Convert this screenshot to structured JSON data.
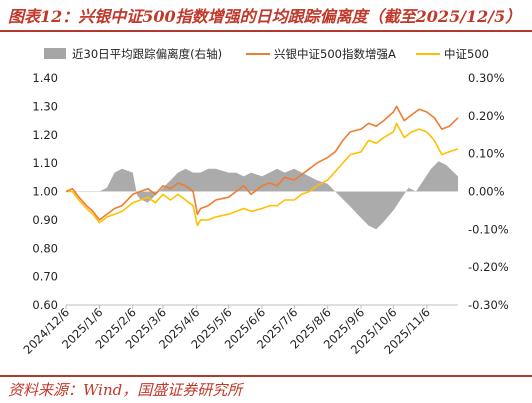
{
  "title": "图表12：兴银中证500指数增强的日均跟踪偏离度（截至2025/12/5）",
  "source": "资料来源：Wind，国盛证券研究所",
  "chart_data": {
    "type": "line",
    "legend": [
      {
        "name": "近30日平均跟踪偏离度(右轴)",
        "color": "#a6a6a6",
        "kind": "area"
      },
      {
        "name": "兴银中证500指数增强A",
        "color": "#ed7d31",
        "kind": "line"
      },
      {
        "name": "中证500",
        "color": "#ffc000",
        "kind": "line"
      }
    ],
    "left_axis": {
      "min": 0.6,
      "max": 1.4,
      "ticks": [
        "0.60",
        "0.70",
        "0.80",
        "0.90",
        "1.00",
        "1.10",
        "1.20",
        "1.30",
        "1.40"
      ]
    },
    "right_axis": {
      "min": -0.3,
      "max": 0.3,
      "ticks": [
        "-0.30%",
        "-0.20%",
        "-0.10%",
        "0.00%",
        "0.10%",
        "0.20%",
        "0.30%"
      ]
    },
    "x_ticks": [
      "2024/12/6",
      "2025/1/6",
      "2025/2/6",
      "2025/3/6",
      "2025/4/6",
      "2025/5/6",
      "2025/6/6",
      "2025/7/6",
      "2025/8/6",
      "2025/9/6",
      "2025/10/6",
      "2025/11/6"
    ],
    "x_range": [
      "2024/12/6",
      "2025/12/5"
    ],
    "series": [
      {
        "name": "兴银中证500指数增强A",
        "color": "#ed7d31",
        "points": [
          [
            "2024/12/6",
            1.0
          ],
          [
            "2024/12/12",
            1.01
          ],
          [
            "2024/12/18",
            0.98
          ],
          [
            "2024/12/25",
            0.95
          ],
          [
            "2024/12/31",
            0.93
          ],
          [
            "2025/1/6",
            0.9
          ],
          [
            "2025/1/13",
            0.92
          ],
          [
            "2025/1/20",
            0.94
          ],
          [
            "2025/1/27",
            0.95
          ],
          [
            "2025/2/6",
            0.99
          ],
          [
            "2025/2/13",
            1.0
          ],
          [
            "2025/2/20",
            1.01
          ],
          [
            "2025/2/27",
            0.99
          ],
          [
            "2025/3/6",
            1.02
          ],
          [
            "2025/3/13",
            1.01
          ],
          [
            "2025/3/20",
            1.03
          ],
          [
            "2025/3/27",
            1.02
          ],
          [
            "2025/4/3",
            1.0
          ],
          [
            "2025/4/7",
            0.92
          ],
          [
            "2025/4/10",
            0.94
          ],
          [
            "2025/4/17",
            0.95
          ],
          [
            "2025/4/24",
            0.97
          ],
          [
            "2025/5/6",
            0.98
          ],
          [
            "2025/5/13",
            1.0
          ],
          [
            "2025/5/20",
            1.02
          ],
          [
            "2025/5/27",
            0.99
          ],
          [
            "2025/6/6",
            1.02
          ],
          [
            "2025/6/13",
            1.03
          ],
          [
            "2025/6/20",
            1.02
          ],
          [
            "2025/6/27",
            1.05
          ],
          [
            "2025/7/6",
            1.04
          ],
          [
            "2025/7/13",
            1.06
          ],
          [
            "2025/7/20",
            1.08
          ],
          [
            "2025/7/27",
            1.1
          ],
          [
            "2025/8/6",
            1.12
          ],
          [
            "2025/8/13",
            1.14
          ],
          [
            "2025/8/20",
            1.18
          ],
          [
            "2025/8/27",
            1.21
          ],
          [
            "2025/9/6",
            1.22
          ],
          [
            "2025/9/13",
            1.24
          ],
          [
            "2025/9/20",
            1.23
          ],
          [
            "2025/9/27",
            1.25
          ],
          [
            "2025/10/6",
            1.28
          ],
          [
            "2025/10/9",
            1.3
          ],
          [
            "2025/10/16",
            1.25
          ],
          [
            "2025/10/23",
            1.27
          ],
          [
            "2025/10/30",
            1.29
          ],
          [
            "2025/11/6",
            1.28
          ],
          [
            "2025/11/13",
            1.26
          ],
          [
            "2025/11/20",
            1.22
          ],
          [
            "2025/11/27",
            1.23
          ],
          [
            "2025/12/5",
            1.26
          ]
        ]
      },
      {
        "name": "中证500",
        "color": "#ffc000",
        "points": [
          [
            "2024/12/6",
            1.0
          ],
          [
            "2024/12/12",
            1.0
          ],
          [
            "2024/12/18",
            0.97
          ],
          [
            "2024/12/25",
            0.94
          ],
          [
            "2024/12/31",
            0.92
          ],
          [
            "2025/1/6",
            0.89
          ],
          [
            "2025/1/13",
            0.91
          ],
          [
            "2025/1/20",
            0.92
          ],
          [
            "2025/1/27",
            0.93
          ],
          [
            "2025/2/6",
            0.96
          ],
          [
            "2025/2/13",
            0.97
          ],
          [
            "2025/2/20",
            0.98
          ],
          [
            "2025/2/27",
            0.96
          ],
          [
            "2025/3/6",
            0.99
          ],
          [
            "2025/3/13",
            0.97
          ],
          [
            "2025/3/20",
            0.99
          ],
          [
            "2025/3/27",
            0.97
          ],
          [
            "2025/4/3",
            0.95
          ],
          [
            "2025/4/7",
            0.88
          ],
          [
            "2025/4/10",
            0.9
          ],
          [
            "2025/4/17",
            0.9
          ],
          [
            "2025/4/24",
            0.91
          ],
          [
            "2025/5/6",
            0.92
          ],
          [
            "2025/5/13",
            0.93
          ],
          [
            "2025/5/20",
            0.94
          ],
          [
            "2025/5/27",
            0.93
          ],
          [
            "2025/6/6",
            0.94
          ],
          [
            "2025/6/13",
            0.95
          ],
          [
            "2025/6/20",
            0.95
          ],
          [
            "2025/6/27",
            0.97
          ],
          [
            "2025/7/6",
            0.97
          ],
          [
            "2025/7/13",
            0.99
          ],
          [
            "2025/7/20",
            1.0
          ],
          [
            "2025/7/27",
            1.02
          ],
          [
            "2025/8/6",
            1.04
          ],
          [
            "2025/8/13",
            1.07
          ],
          [
            "2025/8/20",
            1.1
          ],
          [
            "2025/8/27",
            1.13
          ],
          [
            "2025/9/6",
            1.14
          ],
          [
            "2025/9/13",
            1.18
          ],
          [
            "2025/9/20",
            1.17
          ],
          [
            "2025/9/27",
            1.19
          ],
          [
            "2025/10/6",
            1.21
          ],
          [
            "2025/10/9",
            1.24
          ],
          [
            "2025/10/16",
            1.19
          ],
          [
            "2025/10/23",
            1.21
          ],
          [
            "2025/10/30",
            1.22
          ],
          [
            "2025/11/6",
            1.21
          ],
          [
            "2025/11/13",
            1.18
          ],
          [
            "2025/11/20",
            1.13
          ],
          [
            "2025/11/27",
            1.14
          ],
          [
            "2025/12/5",
            1.15
          ]
        ]
      }
    ],
    "tracking_deviation": {
      "name": "近30日平均跟踪偏离度(右轴)",
      "color": "#a6a6a6",
      "unit": "%",
      "points": [
        [
          "2024/12/6",
          0.0
        ],
        [
          "2024/12/20",
          0.0
        ],
        [
          "2025/1/6",
          0.0
        ],
        [
          "2025/1/13",
          0.01
        ],
        [
          "2025/1/20",
          0.05
        ],
        [
          "2025/1/27",
          0.06
        ],
        [
          "2025/2/6",
          0.05
        ],
        [
          "2025/2/10",
          -0.01
        ],
        [
          "2025/2/13",
          -0.02
        ],
        [
          "2025/2/20",
          -0.03
        ],
        [
          "2025/2/27",
          -0.01
        ],
        [
          "2025/3/6",
          0.01
        ],
        [
          "2025/3/13",
          0.03
        ],
        [
          "2025/3/20",
          0.05
        ],
        [
          "2025/3/27",
          0.06
        ],
        [
          "2025/4/3",
          0.05
        ],
        [
          "2025/4/10",
          0.05
        ],
        [
          "2025/4/17",
          0.06
        ],
        [
          "2025/4/24",
          0.06
        ],
        [
          "2025/5/6",
          0.05
        ],
        [
          "2025/5/13",
          0.05
        ],
        [
          "2025/5/20",
          0.04
        ],
        [
          "2025/5/27",
          0.05
        ],
        [
          "2025/6/6",
          0.04
        ],
        [
          "2025/6/13",
          0.05
        ],
        [
          "2025/6/20",
          0.06
        ],
        [
          "2025/6/27",
          0.05
        ],
        [
          "2025/7/6",
          0.06
        ],
        [
          "2025/7/13",
          0.05
        ],
        [
          "2025/7/20",
          0.04
        ],
        [
          "2025/7/27",
          0.03
        ],
        [
          "2025/8/6",
          0.02
        ],
        [
          "2025/8/13",
          0.0
        ],
        [
          "2025/8/20",
          -0.02
        ],
        [
          "2025/8/27",
          -0.04
        ],
        [
          "2025/9/6",
          -0.07
        ],
        [
          "2025/9/13",
          -0.09
        ],
        [
          "2025/9/20",
          -0.1
        ],
        [
          "2025/9/27",
          -0.08
        ],
        [
          "2025/10/6",
          -0.05
        ],
        [
          "2025/10/13",
          -0.02
        ],
        [
          "2025/10/20",
          0.01
        ],
        [
          "2025/10/27",
          0.0
        ],
        [
          "2025/11/3",
          0.03
        ],
        [
          "2025/11/10",
          0.06
        ],
        [
          "2025/11/17",
          0.08
        ],
        [
          "2025/11/24",
          0.07
        ],
        [
          "2025/12/5",
          0.04
        ]
      ]
    }
  }
}
